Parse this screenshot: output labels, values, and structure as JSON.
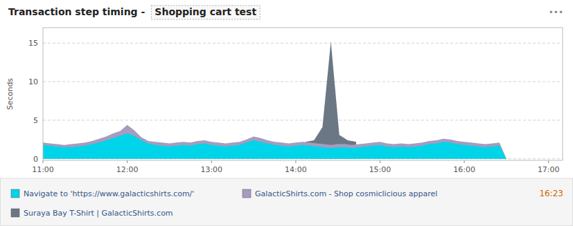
{
  "chart_data": {
    "type": "area",
    "title": "Transaction step timing -",
    "subtitle": "Shopping cart test",
    "ylabel": "Seconds",
    "x": [
      0,
      5,
      10,
      15,
      20,
      25,
      30,
      35,
      40,
      45,
      50,
      55,
      60,
      65,
      70,
      75,
      80,
      85,
      90,
      95,
      100,
      105,
      110,
      115,
      120,
      125,
      130,
      135,
      140,
      145,
      150,
      155,
      160,
      165,
      170,
      175,
      180,
      185,
      190,
      195,
      200,
      205,
      210,
      215,
      220,
      225,
      230,
      235,
      240,
      245,
      250,
      255,
      260,
      265,
      270,
      275,
      280,
      285,
      290,
      295,
      300,
      305,
      310,
      315,
      320,
      325,
      330
    ],
    "series": [
      {
        "name": "Navigate to 'https://www.galacticshirts.com/'",
        "color": "#00d4e8",
        "values": [
          1.8,
          1.7,
          1.6,
          1.5,
          1.5,
          1.6,
          1.7,
          1.9,
          2.1,
          2.4,
          2.7,
          3.0,
          3.3,
          3.0,
          2.4,
          2.0,
          1.8,
          1.7,
          1.6,
          1.7,
          1.8,
          1.7,
          1.9,
          2.0,
          1.8,
          1.7,
          1.6,
          1.7,
          1.8,
          2.1,
          2.4,
          2.2,
          2.0,
          1.8,
          1.7,
          1.6,
          1.7,
          1.8,
          1.7,
          1.6,
          1.5,
          1.4,
          1.5,
          1.5,
          1.4,
          1.5,
          1.6,
          1.7,
          1.8,
          1.6,
          1.5,
          1.6,
          1.5,
          1.6,
          1.7,
          1.9,
          2.0,
          2.2,
          2.1,
          1.9,
          1.8,
          1.7,
          1.6,
          1.5,
          1.6,
          1.7,
          0.0
        ]
      },
      {
        "name": "GalacticShirts.com - Shop cosmiclicious apparel",
        "color": "#a89bbf",
        "values": [
          2.1,
          2.0,
          1.9,
          1.8,
          1.9,
          2.0,
          2.1,
          2.3,
          2.6,
          2.9,
          3.3,
          3.6,
          4.4,
          3.7,
          2.8,
          2.3,
          2.2,
          2.1,
          2.0,
          2.1,
          2.2,
          2.1,
          2.3,
          2.4,
          2.2,
          2.1,
          2.0,
          2.1,
          2.2,
          2.5,
          2.9,
          2.7,
          2.4,
          2.2,
          2.1,
          2.0,
          2.1,
          2.2,
          2.1,
          2.0,
          1.9,
          1.8,
          1.9,
          1.9,
          1.8,
          1.9,
          2.0,
          2.1,
          2.2,
          2.0,
          1.9,
          2.0,
          1.9,
          2.0,
          2.1,
          2.3,
          2.4,
          2.6,
          2.5,
          2.3,
          2.2,
          2.1,
          2.0,
          1.9,
          2.0,
          2.1,
          0.0
        ]
      },
      {
        "name": "Suraya Bay T-Shirt | GalacticShirts.com",
        "color": "#6b7785",
        "x": [
          187,
          193,
          199,
          205,
          211,
          217,
          223
        ],
        "values": [
          2.2,
          2.4,
          4.1,
          15.2,
          3.1,
          2.4,
          2.2
        ]
      }
    ],
    "xlim": [
      0,
      370
    ],
    "xticks": [
      {
        "value": 0,
        "label": "11:00"
      },
      {
        "value": 60,
        "label": "12:00"
      },
      {
        "value": 120,
        "label": "13:00"
      },
      {
        "value": 180,
        "label": "14:00"
      },
      {
        "value": 240,
        "label": "15:00"
      },
      {
        "value": 300,
        "label": "16:00"
      },
      {
        "value": 360,
        "label": "17:00"
      }
    ],
    "ylim": [
      -0.2,
      17
    ],
    "yticks": [
      0,
      5,
      10,
      15
    ],
    "grid": true,
    "legend": "bottom",
    "annotations": [
      {
        "text": "•••"
      },
      {
        "text": "16:23"
      }
    ]
  }
}
